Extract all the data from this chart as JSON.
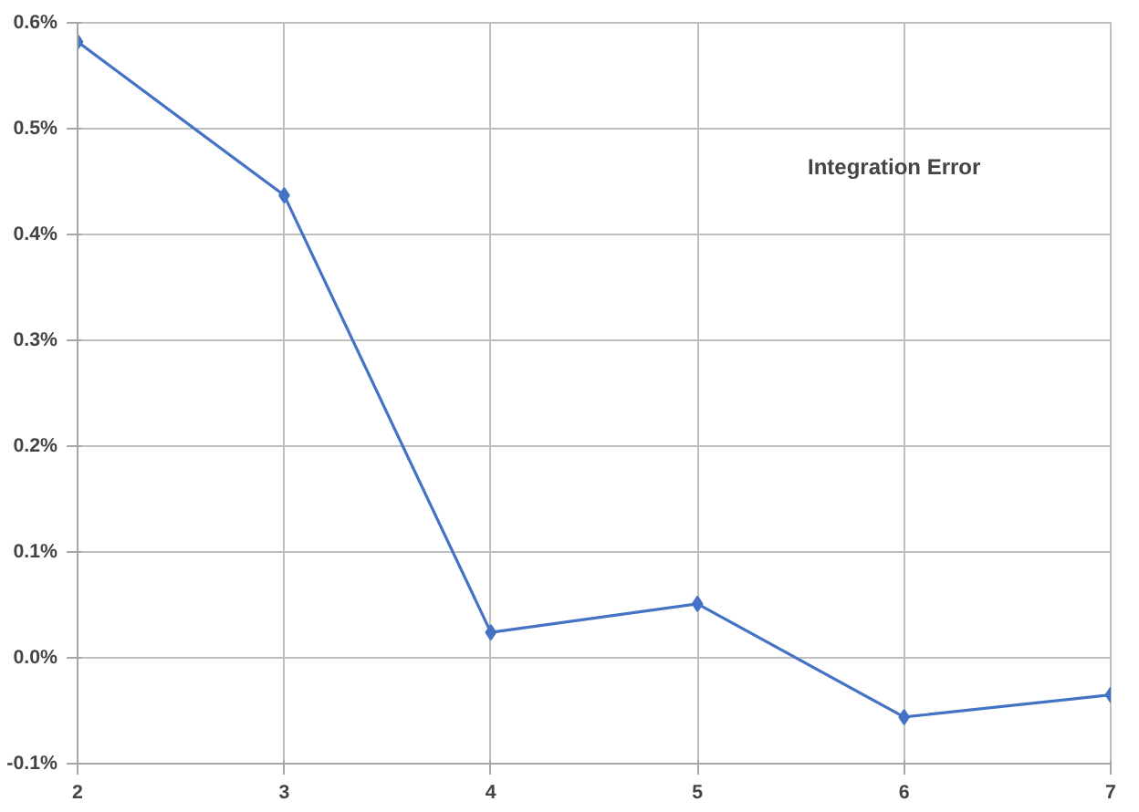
{
  "chart_data": {
    "type": "line",
    "x": [
      2,
      3,
      4,
      5,
      6,
      7
    ],
    "series": [
      {
        "color": "#4472c4",
        "values": [
          0.582,
          0.437,
          0.024,
          0.051,
          -0.056,
          -0.035
        ]
      }
    ],
    "annotations": [
      "Integration Error"
    ],
    "xlim": [
      2,
      7
    ],
    "xticks": [
      2,
      3,
      4,
      5,
      6,
      7
    ],
    "ylim": [
      -0.1,
      0.6
    ],
    "yticks": [
      {
        "value": -0.1,
        "label": "-0.1%"
      },
      {
        "value": 0,
        "label": "0.0%"
      },
      {
        "value": 0.1,
        "label": "0.1%"
      },
      {
        "value": 0.2,
        "label": "0.2%"
      },
      {
        "value": 0.3,
        "label": "0.3%"
      },
      {
        "value": 0.4,
        "label": "0.4%"
      },
      {
        "value": 0.5,
        "label": "0.5%"
      },
      {
        "value": 0.6,
        "label": "0.6%"
      }
    ],
    "grid": true,
    "marker": "diamond",
    "line_style": "solid"
  }
}
